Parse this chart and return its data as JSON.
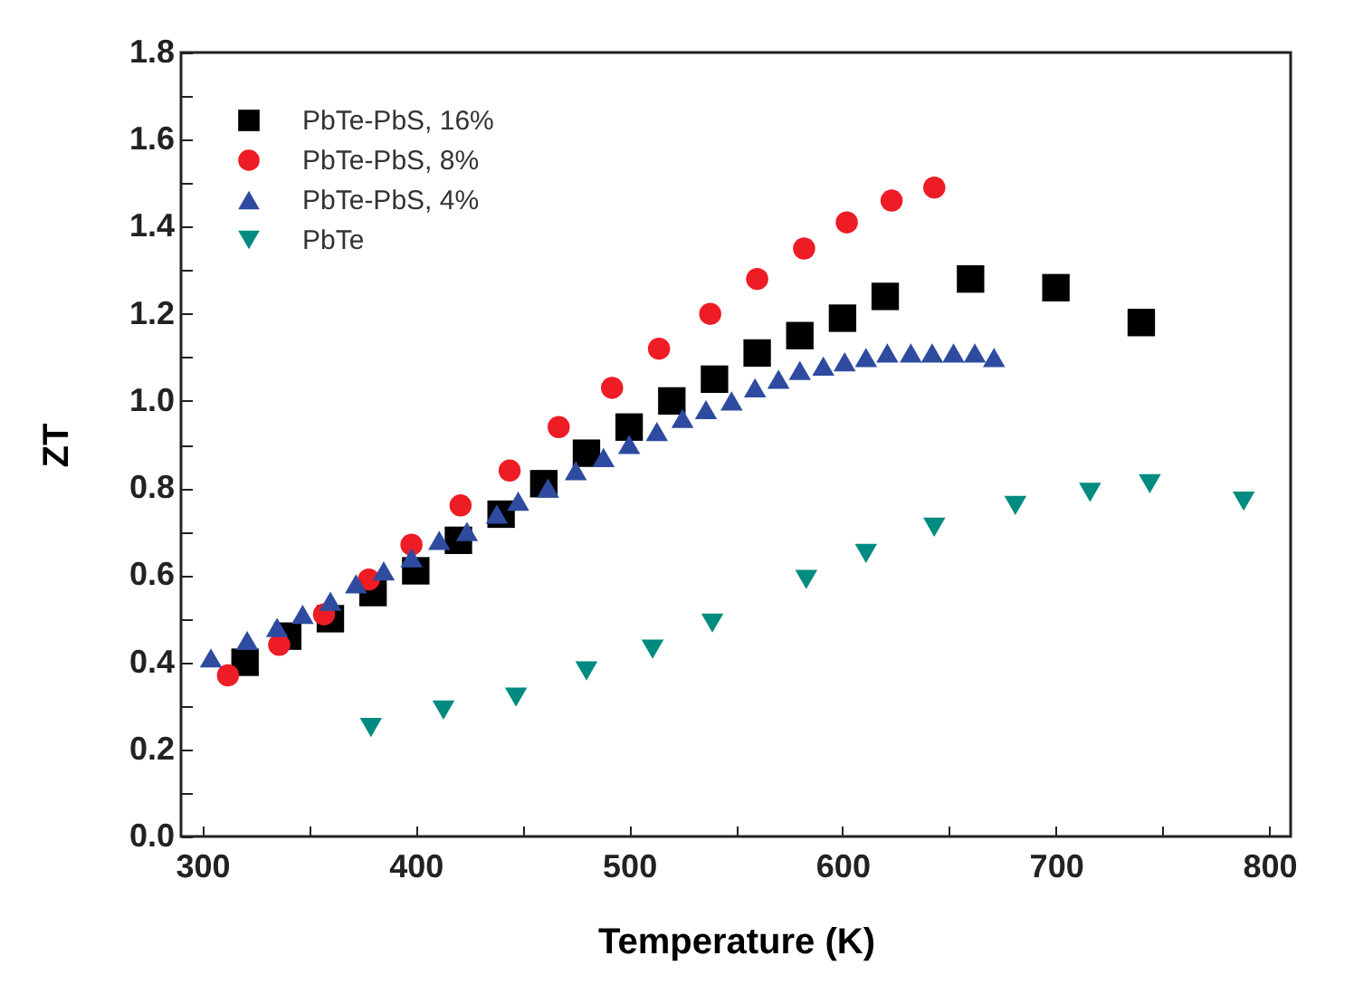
{
  "chart_data": {
    "type": "scatter",
    "xlabel": "Temperature (K)",
    "ylabel": "ZT",
    "xlim": [
      290,
      810
    ],
    "ylim": [
      0,
      1.8
    ],
    "xticks": [
      300,
      {
        "value": 350,
        "label": null
      },
      400,
      {
        "value": 450,
        "label": null
      },
      500,
      {
        "value": 550,
        "label": null
      },
      600,
      {
        "value": 650,
        "label": null
      },
      700,
      {
        "value": 750,
        "label": null
      },
      800
    ],
    "yticks": [
      {
        "value": 0,
        "label": "0.0"
      },
      {
        "value": 0.1,
        "label": null
      },
      0.2,
      {
        "value": 0.3,
        "label": null
      },
      0.4,
      {
        "value": 0.5,
        "label": null
      },
      0.6,
      {
        "value": 0.7,
        "label": null
      },
      0.8,
      {
        "value": 0.9,
        "label": null
      },
      {
        "value": 1.0,
        "label": "1.0"
      },
      {
        "value": 1.1,
        "label": null
      },
      1.2,
      {
        "value": 1.3,
        "label": null
      },
      1.4,
      {
        "value": 1.5,
        "label": null
      },
      1.6,
      {
        "value": 1.7,
        "label": null
      },
      1.8
    ],
    "legend": "top left",
    "grid": false,
    "series": [
      {
        "name": "PbTe-PbS, 16%",
        "color": "#000000",
        "marker": "square",
        "x": [
          320,
          340,
          360,
          380,
          400,
          420,
          440,
          460,
          480,
          500,
          520,
          540,
          560,
          580,
          600,
          620,
          660,
          700,
          740
        ],
        "values": [
          0.4,
          0.46,
          0.5,
          0.56,
          0.61,
          0.68,
          0.74,
          0.81,
          0.88,
          0.94,
          1.0,
          1.05,
          1.11,
          1.15,
          1.19,
          1.24,
          1.28,
          1.26,
          1.18
        ]
      },
      {
        "name": "PbTe-PbS, 8%",
        "color": "#ee1c25",
        "marker": "circle",
        "x": [
          312,
          336,
          357,
          378,
          398,
          421,
          444,
          467,
          492,
          514,
          538,
          560,
          582,
          602,
          623,
          643
        ],
        "values": [
          0.37,
          0.44,
          0.51,
          0.59,
          0.67,
          0.76,
          0.84,
          0.94,
          1.03,
          1.12,
          1.2,
          1.28,
          1.35,
          1.41,
          1.46,
          1.49
        ]
      },
      {
        "name": "PbTe-PbS, 4%",
        "color": "#2e4ba0",
        "marker": "triangle",
        "x": [
          304,
          321,
          335,
          347,
          360,
          372,
          385,
          398,
          411,
          424,
          438,
          448,
          462,
          475,
          488,
          500,
          513,
          525,
          536,
          548,
          559,
          570,
          580,
          591,
          601,
          611,
          621,
          632,
          642,
          652,
          662,
          671
        ],
        "values": [
          0.41,
          0.45,
          0.48,
          0.51,
          0.54,
          0.58,
          0.61,
          0.64,
          0.68,
          0.7,
          0.74,
          0.77,
          0.8,
          0.84,
          0.87,
          0.9,
          0.93,
          0.96,
          0.98,
          1.0,
          1.03,
          1.05,
          1.07,
          1.08,
          1.09,
          1.1,
          1.11,
          1.11,
          1.11,
          1.11,
          1.11,
          1.1
        ]
      },
      {
        "name": "PbTe",
        "color": "#008b80",
        "marker": "triangle-down",
        "x": [
          379,
          413,
          447,
          480,
          511,
          539,
          583,
          611,
          643,
          681,
          716,
          744,
          788
        ],
        "values": [
          0.25,
          0.29,
          0.32,
          0.38,
          0.43,
          0.49,
          0.59,
          0.65,
          0.71,
          0.76,
          0.79,
          0.81,
          0.77
        ]
      }
    ]
  }
}
